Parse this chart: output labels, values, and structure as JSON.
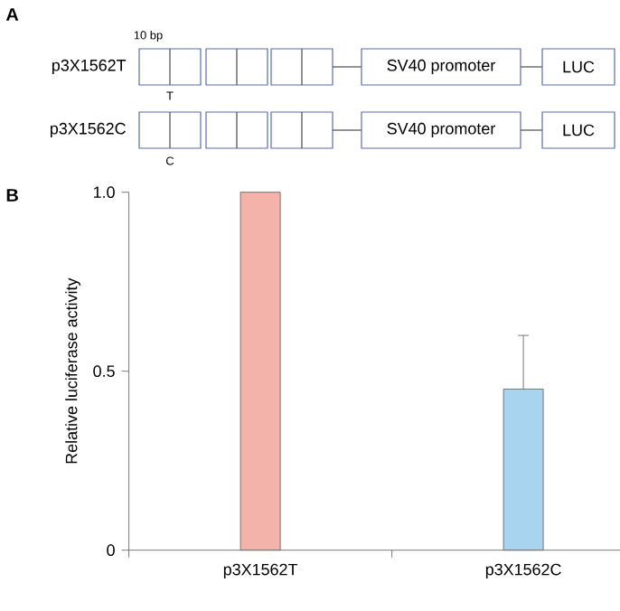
{
  "chart_data": {
    "type": "bar",
    "categories": [
      "p3X1562T",
      "p3X1562C"
    ],
    "values": [
      1.0,
      0.45
    ],
    "colors": [
      "#f4b3aa",
      "#a8d4f0"
    ],
    "errors": [
      null,
      [
        0.45,
        0.6
      ]
    ],
    "ylim": [
      0,
      1
    ],
    "yticks": [
      0,
      0.5,
      {
        "value": 1,
        "label": "1.0"
      }
    ],
    "ylabel": "Relative luciferase activity",
    "annotations": [
      "A",
      "10 bp",
      "p3X1562T",
      "SV40 promoter",
      "LUC",
      "T",
      "p3X1562C",
      "SV40 promoter",
      "LUC",
      "C",
      "B"
    ]
  }
}
